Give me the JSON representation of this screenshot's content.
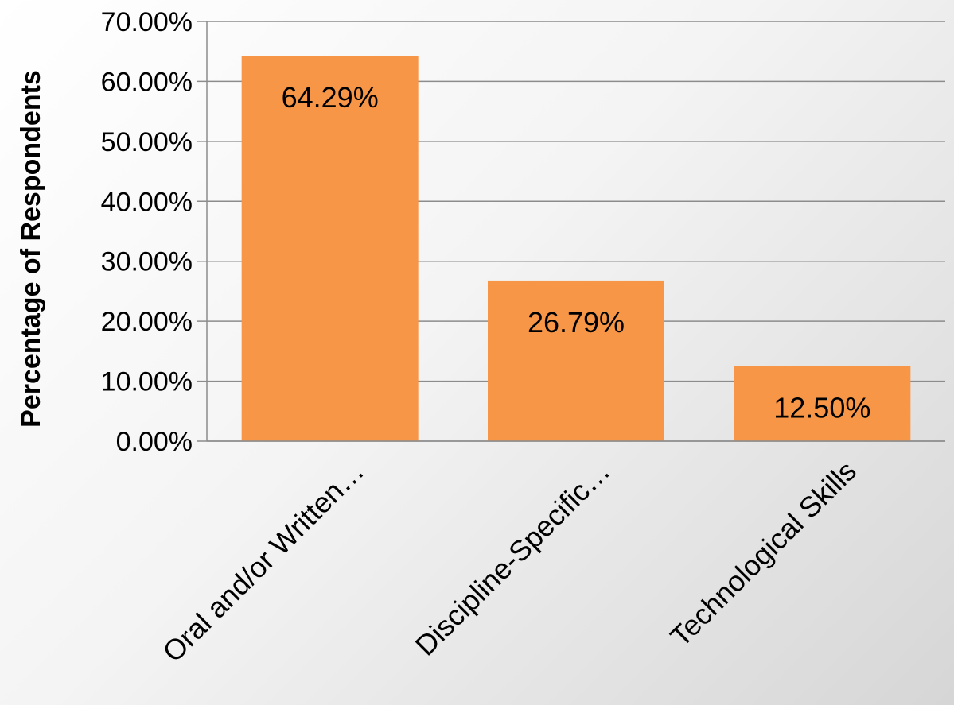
{
  "chart_data": {
    "type": "bar",
    "categories": [
      "Oral and/or Written…",
      "Discipline-Specific…",
      "Technological Skills"
    ],
    "values": [
      64.29,
      26.79,
      12.5
    ],
    "data_labels": [
      "64.29%",
      "26.79%",
      "12.50%"
    ],
    "title": "",
    "xlabel": "",
    "ylabel": "Percentage of Respondents",
    "ylim": [
      0,
      70
    ],
    "yticks": [
      0,
      10,
      20,
      30,
      40,
      50,
      60,
      70
    ],
    "ytick_labels": [
      "0.00%",
      "10.00%",
      "20.00%",
      "30.00%",
      "40.00%",
      "50.00%",
      "60.00%",
      "70.00%"
    ],
    "grid": true,
    "legend": "none",
    "bar_color": "#f79646",
    "grid_color": "#8c8c8c"
  }
}
